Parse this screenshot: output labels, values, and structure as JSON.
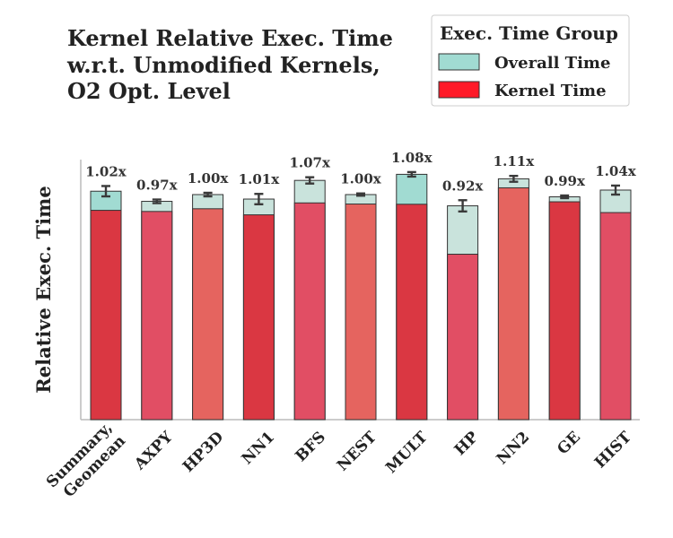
{
  "chart_data": {
    "type": "bar",
    "title_lines": [
      "Kernel Relative Exec. Time",
      "w.r.t. Unmodified Kernels,",
      "O2 Opt. Level"
    ],
    "xlabel": "",
    "ylabel": "Relative Exec. Time",
    "ylim": [
      0,
      1.15
    ],
    "grid": false,
    "legend": {
      "title": "Exec. Time Group",
      "placement": "top-right",
      "entries": [
        {
          "name": "Overall Time",
          "color": "#a1dbd2"
        },
        {
          "name": "Kernel Time",
          "color": "#ff1a28"
        }
      ]
    },
    "categories": [
      [
        "Summary,",
        "Geomean"
      ],
      [
        "AXPY"
      ],
      [
        "HP3D"
      ],
      [
        "NN1"
      ],
      [
        "BFS"
      ],
      [
        "NEST"
      ],
      [
        "MULT"
      ],
      [
        "HP"
      ],
      [
        "NN2"
      ],
      [
        "GE"
      ],
      [
        "HIST"
      ]
    ],
    "annotations": [
      "1.02x",
      "0.97x",
      "1.00x",
      "1.01x",
      "1.07x",
      "1.00x",
      "1.08x",
      "0.92x",
      "1.11x",
      "0.99x",
      "1.04x"
    ],
    "series": [
      {
        "name": "Overall Time",
        "values": [
          1.015,
          0.97,
          1.0,
          0.98,
          1.063,
          1.0,
          1.09,
          0.95,
          1.07,
          0.99,
          1.02
        ],
        "errors": [
          0.023,
          0.008,
          0.008,
          0.023,
          0.014,
          0.005,
          0.01,
          0.025,
          0.013,
          0.006,
          0.02
        ],
        "colors": [
          "#a1dbd2",
          "#c9e3dc",
          "#c9e3dc",
          "#c9e3dc",
          "#c9e3dc",
          "#c9e3dc",
          "#a1dbd2",
          "#c9e3dc",
          "#c9e3dc",
          "#c9e3dc",
          "#c9e3dc"
        ]
      },
      {
        "name": "Kernel Time",
        "values": [
          0.93,
          0.925,
          0.937,
          0.91,
          0.963,
          0.958,
          0.957,
          0.735,
          1.03,
          0.968,
          0.92
        ],
        "colors": [
          "#da3742",
          "#e14e64",
          "#e5645f",
          "#da3742",
          "#e14e64",
          "#e5645f",
          "#da3742",
          "#e14e64",
          "#e5645f",
          "#da3742",
          "#e14e64"
        ]
      }
    ]
  }
}
